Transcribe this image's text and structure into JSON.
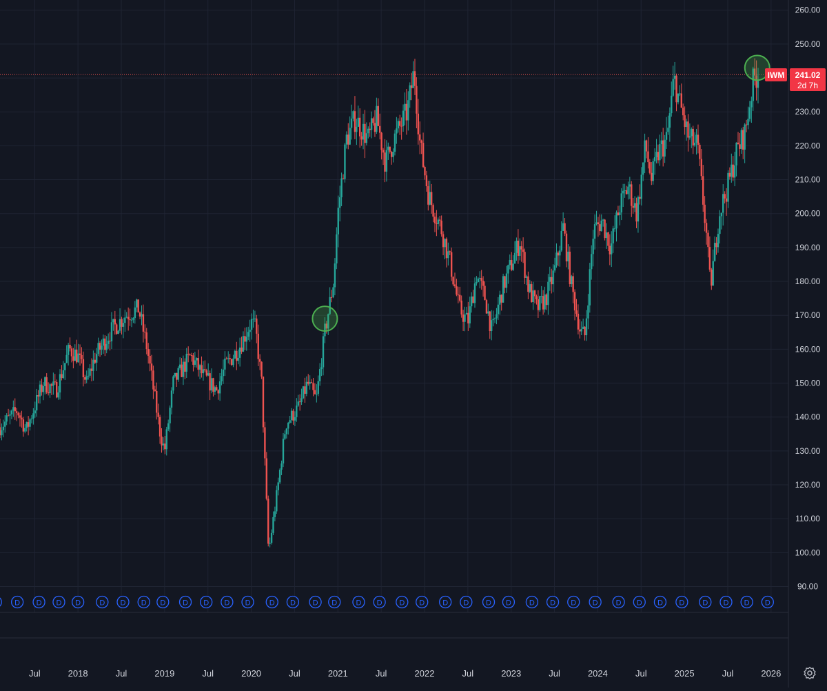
{
  "theme": {
    "background": "#131722",
    "grid": "#1f2433",
    "axis_text": "#d1d4dc",
    "up_color": "#26a69a",
    "down_color": "#ef5350",
    "highlight_circle": "#4caf50",
    "dividend_color": "#2962ff"
  },
  "chart_data": {
    "type": "candlestick",
    "ticker": "IWM",
    "last_price_label": "241.02",
    "countdown_label": "2d 7h",
    "last_price": 241.02,
    "ylim": [
      84,
      263
    ],
    "y_ticks": [
      "90.00",
      "100.00",
      "110.00",
      "120.00",
      "130.00",
      "140.00",
      "150.00",
      "160.00",
      "170.00",
      "180.00",
      "190.00",
      "200.00",
      "210.00",
      "220.00",
      "230.00",
      "240.00",
      "250.00",
      "260.00"
    ],
    "x_ticks": [
      {
        "label": "Jul",
        "date": 2017.5
      },
      {
        "label": "2018",
        "date": 2018.0
      },
      {
        "label": "Jul",
        "date": 2018.5
      },
      {
        "label": "2019",
        "date": 2019.0
      },
      {
        "label": "Jul",
        "date": 2019.5
      },
      {
        "label": "2020",
        "date": 2020.0
      },
      {
        "label": "Jul",
        "date": 2020.5
      },
      {
        "label": "2021",
        "date": 2021.0
      },
      {
        "label": "Jul",
        "date": 2021.5
      },
      {
        "label": "2022",
        "date": 2022.0
      },
      {
        "label": "Jul",
        "date": 2022.5
      },
      {
        "label": "2023",
        "date": 2023.0
      },
      {
        "label": "Jul",
        "date": 2023.5
      },
      {
        "label": "2024",
        "date": 2024.0
      },
      {
        "label": "Jul",
        "date": 2024.5
      },
      {
        "label": "2025",
        "date": 2025.0
      },
      {
        "label": "Jul",
        "date": 2025.5
      },
      {
        "label": "2026",
        "date": 2026.0
      }
    ],
    "xlim": [
      2017.1,
      2026.2
    ],
    "price_path": [
      [
        2017.1,
        137
      ],
      [
        2017.3,
        142
      ],
      [
        2017.4,
        136
      ],
      [
        2017.6,
        150
      ],
      [
        2017.75,
        148
      ],
      [
        2017.9,
        160
      ],
      [
        2018.0,
        158
      ],
      [
        2018.1,
        150
      ],
      [
        2018.2,
        158
      ],
      [
        2018.4,
        166
      ],
      [
        2018.55,
        170
      ],
      [
        2018.7,
        172
      ],
      [
        2018.8,
        160
      ],
      [
        2018.95,
        135
      ],
      [
        2019.0,
        130
      ],
      [
        2019.1,
        150
      ],
      [
        2019.3,
        158
      ],
      [
        2019.45,
        152
      ],
      [
        2019.6,
        148
      ],
      [
        2019.7,
        155
      ],
      [
        2019.85,
        160
      ],
      [
        2020.0,
        168
      ],
      [
        2020.05,
        166
      ],
      [
        2020.12,
        150
      ],
      [
        2020.2,
        100
      ],
      [
        2020.3,
        118
      ],
      [
        2020.4,
        138
      ],
      [
        2020.55,
        143
      ],
      [
        2020.65,
        150
      ],
      [
        2020.75,
        145
      ],
      [
        2020.85,
        165
      ],
      [
        2020.95,
        180
      ],
      [
        2021.0,
        200
      ],
      [
        2021.1,
        222
      ],
      [
        2021.2,
        228
      ],
      [
        2021.35,
        222
      ],
      [
        2021.45,
        228
      ],
      [
        2021.55,
        215
      ],
      [
        2021.65,
        222
      ],
      [
        2021.8,
        230
      ],
      [
        2021.88,
        242
      ],
      [
        2021.95,
        220
      ],
      [
        2022.05,
        205
      ],
      [
        2022.2,
        195
      ],
      [
        2022.3,
        185
      ],
      [
        2022.4,
        172
      ],
      [
        2022.5,
        168
      ],
      [
        2022.6,
        182
      ],
      [
        2022.7,
        175
      ],
      [
        2022.78,
        165
      ],
      [
        2022.9,
        178
      ],
      [
        2023.0,
        185
      ],
      [
        2023.1,
        192
      ],
      [
        2023.2,
        178
      ],
      [
        2023.3,
        172
      ],
      [
        2023.4,
        175
      ],
      [
        2023.5,
        183
      ],
      [
        2023.6,
        196
      ],
      [
        2023.7,
        178
      ],
      [
        2023.8,
        165
      ],
      [
        2023.85,
        164
      ],
      [
        2023.95,
        195
      ],
      [
        2024.05,
        198
      ],
      [
        2024.15,
        190
      ],
      [
        2024.25,
        202
      ],
      [
        2024.35,
        208
      ],
      [
        2024.45,
        200
      ],
      [
        2024.55,
        220
      ],
      [
        2024.62,
        210
      ],
      [
        2024.7,
        218
      ],
      [
        2024.8,
        222
      ],
      [
        2024.88,
        240
      ],
      [
        2024.95,
        232
      ],
      [
        2025.05,
        222
      ],
      [
        2025.15,
        220
      ],
      [
        2025.25,
        195
      ],
      [
        2025.3,
        178
      ],
      [
        2025.4,
        200
      ],
      [
        2025.5,
        208
      ],
      [
        2025.6,
        218
      ],
      [
        2025.7,
        224
      ],
      [
        2025.8,
        240
      ],
      [
        2025.85,
        241
      ]
    ],
    "highlight_circles": [
      {
        "date": 2020.85,
        "price": 169
      },
      {
        "date": 2025.84,
        "price": 243
      }
    ],
    "dividend_marker_label": "D",
    "dividend_dates": [
      2017.05,
      2017.3,
      2017.55,
      2017.78,
      2018.0,
      2018.28,
      2018.52,
      2018.76,
      2018.98,
      2019.24,
      2019.48,
      2019.72,
      2019.96,
      2020.24,
      2020.48,
      2020.74,
      2020.96,
      2021.24,
      2021.48,
      2021.74,
      2021.97,
      2022.24,
      2022.48,
      2022.74,
      2022.97,
      2023.24,
      2023.48,
      2023.72,
      2023.97,
      2024.24,
      2024.48,
      2024.72,
      2024.97,
      2025.24,
      2025.48,
      2025.72,
      2025.96
    ]
  },
  "controls": {
    "settings_icon": "gear-icon"
  }
}
